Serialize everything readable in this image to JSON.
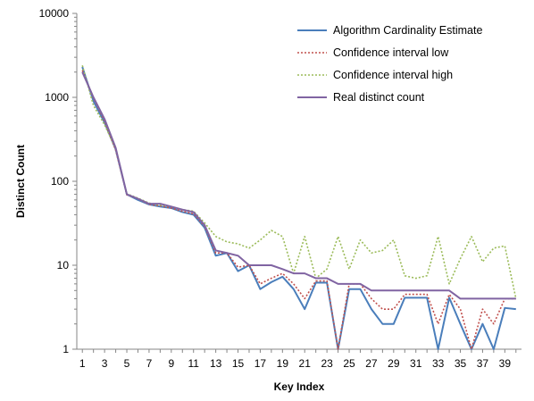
{
  "chart_data": {
    "type": "line",
    "title": "",
    "xlabel": "Key Index",
    "ylabel": "Distinct Count",
    "y_scale": "log",
    "ylim": [
      1,
      10000
    ],
    "y_ticks": [
      1,
      10,
      100,
      1000,
      10000
    ],
    "y_tick_labels": [
      "1",
      "10",
      "100",
      "1000",
      "10000"
    ],
    "xlim": [
      0.5,
      40.5
    ],
    "x_ticks": [
      1,
      3,
      5,
      7,
      9,
      11,
      13,
      15,
      17,
      19,
      21,
      23,
      25,
      27,
      29,
      31,
      33,
      35,
      37,
      39
    ],
    "x_tick_labels": [
      "1",
      "3",
      "5",
      "7",
      "9",
      "11",
      "13",
      "15",
      "17",
      "19",
      "21",
      "23",
      "25",
      "27",
      "29",
      "31",
      "33",
      "35",
      "37",
      "39"
    ],
    "grid": false,
    "legend_position": "top-right",
    "x": [
      1,
      2,
      3,
      4,
      5,
      6,
      7,
      8,
      9,
      10,
      11,
      12,
      13,
      14,
      15,
      16,
      17,
      18,
      19,
      20,
      21,
      22,
      23,
      24,
      25,
      26,
      27,
      28,
      29,
      30,
      31,
      32,
      33,
      34,
      35,
      36,
      37,
      38,
      39,
      40
    ],
    "series": [
      {
        "name": "Algorithm Cardinality Estimate",
        "color": "#4a7ebb",
        "style": "solid",
        "values": [
          2300,
          900,
          500,
          240,
          70,
          60,
          53,
          50,
          48,
          43,
          40,
          28,
          13,
          14,
          8.5,
          10,
          5.2,
          6.3,
          7.3,
          5.2,
          3.0,
          6.2,
          6.2,
          1,
          5.2,
          5.2,
          3.0,
          2.0,
          2.0,
          4.1,
          4.1,
          4.1,
          1,
          4.1,
          2.0,
          1,
          2.0,
          1,
          3.1,
          3.0
        ]
      },
      {
        "name": "Confidence interval low",
        "color": "#c0504d",
        "style": "dotted",
        "values": [
          2100,
          980,
          520,
          235,
          69,
          62,
          53,
          51,
          48,
          44,
          41,
          29,
          14,
          14,
          9.5,
          10,
          6.0,
          7.0,
          8.0,
          6.0,
          4.0,
          6.5,
          6.5,
          1,
          6.0,
          6.0,
          4.0,
          3.0,
          3.0,
          4.5,
          4.5,
          4.5,
          2.0,
          4.5,
          3.0,
          1,
          3.0,
          2.0,
          4.0,
          4.0
        ]
      },
      {
        "name": "Confidence interval high",
        "color": "#9bbb59",
        "style": "dotted",
        "values": [
          2400,
          800,
          470,
          245,
          71,
          63,
          55,
          52,
          50,
          46,
          44,
          32,
          22,
          19,
          18,
          16,
          20,
          26,
          22,
          8.0,
          22,
          7.0,
          9.0,
          22,
          9.0,
          20,
          14,
          15,
          20,
          7.5,
          7.0,
          7.5,
          22,
          6.0,
          12,
          22,
          11,
          16,
          17,
          4.0
        ]
      },
      {
        "name": "Real distinct count",
        "color": "#8064a2",
        "style": "solid",
        "values": [
          2000,
          1000,
          550,
          250,
          70,
          62,
          54,
          54,
          50,
          46,
          43,
          30,
          15,
          14,
          13,
          10,
          10,
          10,
          9,
          8,
          8,
          7,
          7,
          6,
          6,
          6,
          5,
          5,
          5,
          5,
          5,
          5,
          5,
          5,
          4,
          4,
          4,
          4,
          4,
          4
        ]
      }
    ]
  }
}
